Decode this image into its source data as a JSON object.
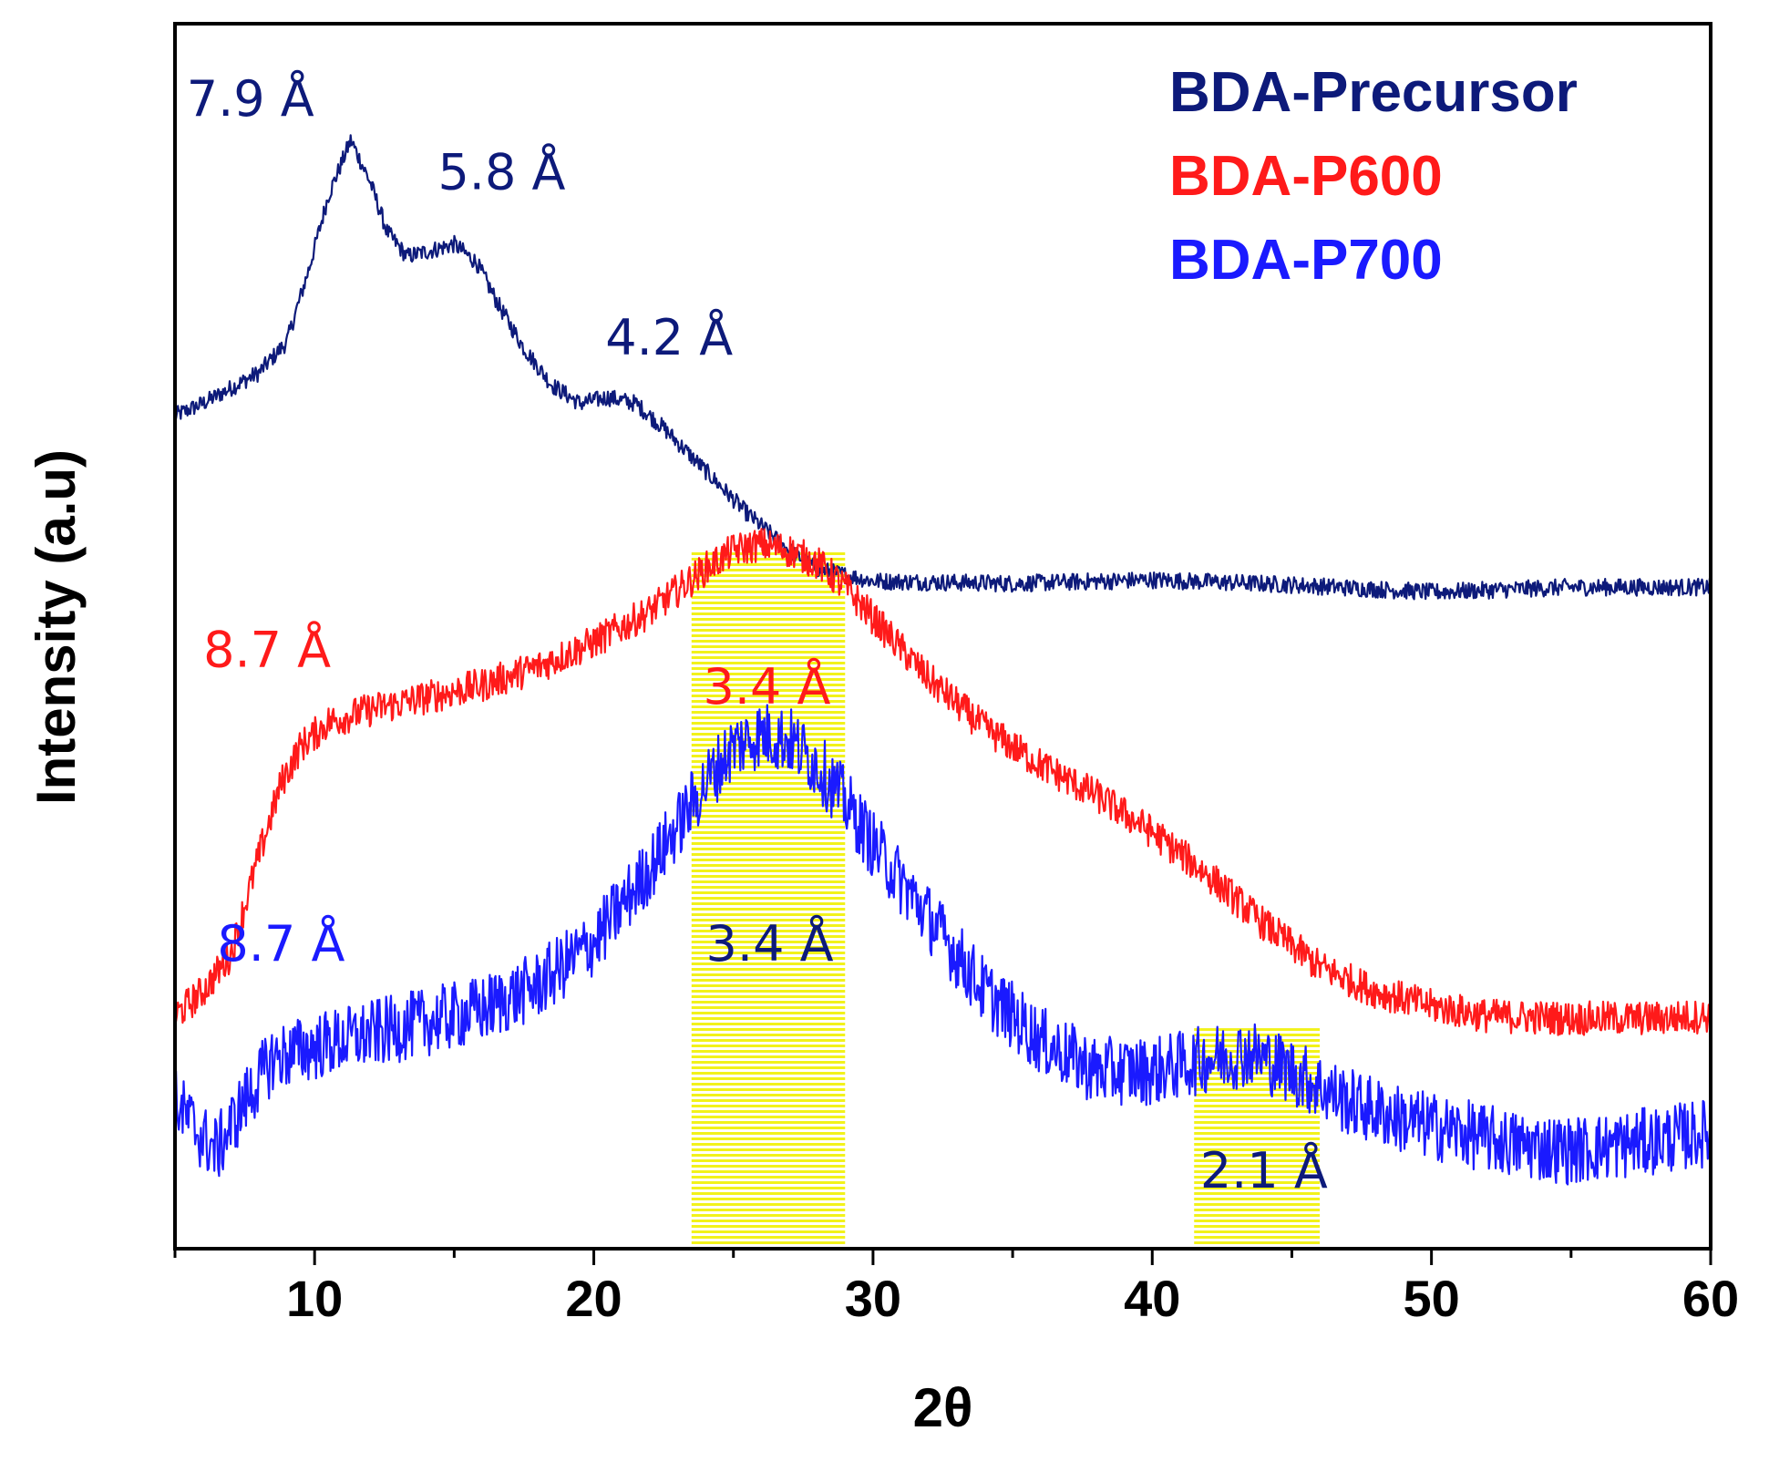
{
  "chart_data": {
    "type": "line",
    "title": "",
    "xlabel": "2θ",
    "ylabel": "Intensity (a.u)",
    "xlim": [
      5,
      60
    ],
    "ylim": [
      0,
      100
    ],
    "x_ticks": [
      10,
      20,
      30,
      40,
      50,
      60
    ],
    "y_ticks_shown": false,
    "legend_position": "top-right",
    "legend": [
      {
        "name": "BDA-Precursor",
        "color": "#0d1a7a"
      },
      {
        "name": "BDA-P600",
        "color": "#ff1a1a"
      },
      {
        "name": "BDA-P700",
        "color": "#1a1aff"
      }
    ],
    "highlight_bands": [
      {
        "x": [
          23.5,
          29.0
        ],
        "y": [
          0,
          57
        ],
        "color": "#f2f21a"
      },
      {
        "x": [
          41.5,
          46.0
        ],
        "y": [
          0,
          18
        ],
        "color": "#f2f21a"
      }
    ],
    "series": [
      {
        "name": "BDA-Precursor",
        "color": "#0d1a7a",
        "noise": 0.7,
        "x": [
          5,
          6,
          8,
          9,
          9.8,
          10.5,
          11.3,
          12,
          12.6,
          13.3,
          14.2,
          15,
          15.8,
          16.6,
          17.5,
          18.5,
          19.5,
          20.5,
          21.5,
          22.5,
          24,
          25.5,
          27,
          28,
          30,
          35,
          40,
          45,
          50,
          55,
          60
        ],
        "values": [
          68,
          69,
          71.5,
          74,
          80,
          86,
          90.5,
          87,
          83,
          81,
          81.5,
          82,
          80.5,
          77,
          73.5,
          70.5,
          69,
          69.5,
          69,
          67,
          63.5,
          60,
          57,
          55.5,
          54.5,
          54.3,
          54.6,
          54.2,
          53.6,
          54,
          54
        ]
      },
      {
        "name": "BDA-P600",
        "color": "#ff1a1a",
        "noise": 1.4,
        "x": [
          5,
          6,
          7,
          8,
          8.8,
          9.5,
          10.5,
          12,
          14,
          16,
          18,
          20,
          22,
          24,
          25,
          26,
          27,
          28,
          29,
          30,
          32,
          34,
          36,
          38,
          40,
          42,
          44,
          46,
          48,
          50,
          52,
          55,
          58,
          60
        ],
        "values": [
          19,
          21,
          24,
          32,
          38,
          41,
          43,
          44,
          45,
          46,
          47.5,
          49.5,
          52,
          55.5,
          57,
          57.5,
          57,
          56,
          54,
          51.5,
          46.5,
          42.5,
          39.5,
          37,
          34,
          30.5,
          26.5,
          23,
          21,
          19.8,
          19,
          18.8,
          18.8,
          19
        ]
      },
      {
        "name": "BDA-P700",
        "color": "#1a1aff",
        "noise": 2.8,
        "x": [
          5,
          6,
          6.5,
          7.5,
          8.5,
          10,
          12,
          14,
          16,
          18,
          20,
          22,
          24,
          25,
          26,
          27,
          28,
          29,
          30,
          32,
          34,
          36,
          38,
          40,
          42,
          43.5,
          45,
          47,
          49,
          51,
          53,
          55,
          57,
          60
        ],
        "values": [
          12,
          9,
          8,
          12,
          15.5,
          16.5,
          17.5,
          18.5,
          19.5,
          21.5,
          25,
          31,
          38,
          41,
          42,
          41.5,
          39.5,
          36.5,
          33,
          27,
          21,
          17,
          14.5,
          14.5,
          15.5,
          16,
          14.5,
          12,
          10.5,
          9.5,
          8.5,
          8,
          8.5,
          9.5
        ]
      }
    ],
    "annotations": [
      {
        "text": "7.9 Å",
        "color": "#0d1a7a",
        "x": 7.7,
        "y": 92.5
      },
      {
        "text": "5.8 Å",
        "color": "#0d1a7a",
        "x": 16.7,
        "y": 86.5
      },
      {
        "text": "4.2 Å",
        "color": "#0d1a7a",
        "x": 22.7,
        "y": 73
      },
      {
        "text": "8.7 Å",
        "color": "#ff1a1a",
        "x": 8.3,
        "y": 47.5
      },
      {
        "text": "3.4 Å",
        "color": "#ff1a1a",
        "x": 26.2,
        "y": 44.5
      },
      {
        "text": "8.7 Å",
        "color": "#1a1aff",
        "x": 8.8,
        "y": 23.5
      },
      {
        "text": "3.4 Å",
        "color": "#0d1a7a",
        "x": 26.3,
        "y": 23.5
      },
      {
        "text": "2.1 Å",
        "color": "#0d1a7a",
        "x": 44.0,
        "y": 5
      }
    ]
  }
}
